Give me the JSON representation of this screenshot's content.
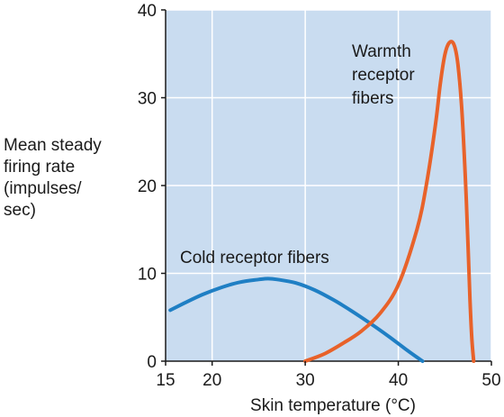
{
  "chart_data": {
    "type": "line",
    "xlabel": "Skin temperature (°C)",
    "ylabel_lines": [
      "Mean steady",
      "firing rate",
      "(impulses/",
      "sec)"
    ],
    "xlim": [
      15,
      50
    ],
    "ylim": [
      0,
      40
    ],
    "xticks": [
      15,
      20,
      30,
      40,
      50
    ],
    "yticks": [
      0,
      10,
      20,
      30,
      40
    ],
    "grid": true,
    "colors": {
      "plot_bg": "#c9dcf0",
      "grid": "#ffffff",
      "cold": "#1f7fc4",
      "warm": "#e8622a",
      "axis": "#1a1a1a"
    },
    "series": [
      {
        "name": "Cold receptor fibers",
        "label_lines": [
          "Cold receptor fibers"
        ],
        "color": "#1f7fc4",
        "x": [
          15.5,
          17,
          19,
          21,
          23,
          25,
          26,
          27,
          29,
          31,
          33,
          35,
          37,
          39,
          41,
          42.6
        ],
        "y": [
          5.8,
          6.6,
          7.6,
          8.4,
          9.0,
          9.3,
          9.4,
          9.3,
          8.9,
          8.1,
          7.0,
          5.7,
          4.3,
          2.8,
          1.2,
          0.0
        ]
      },
      {
        "name": "Warmth receptor fibers",
        "label_lines": [
          "Warmth",
          "receptor",
          "fibers"
        ],
        "color": "#e8622a",
        "x": [
          30.0,
          32,
          34,
          36,
          38,
          40,
          42,
          43,
          44,
          44.5,
          45,
          45.5,
          46,
          46.4,
          46.8,
          47.2,
          47.5,
          47.7,
          47.9,
          48.1
        ],
        "y": [
          0.0,
          0.8,
          2.0,
          3.4,
          5.4,
          8.7,
          15.0,
          20.0,
          27.0,
          31.5,
          34.9,
          36.3,
          36.0,
          33.8,
          29.0,
          21.0,
          13.0,
          7.0,
          2.5,
          0.0
        ]
      }
    ]
  }
}
